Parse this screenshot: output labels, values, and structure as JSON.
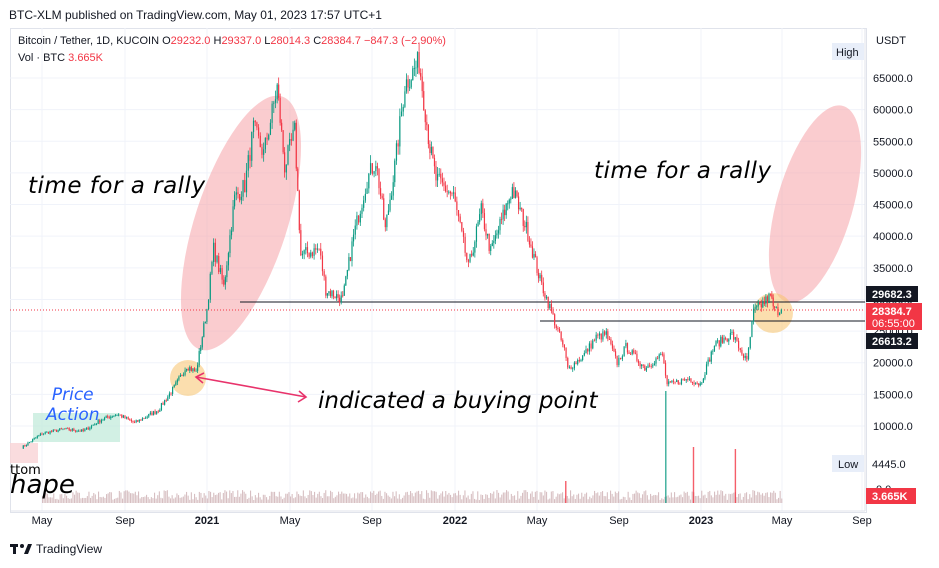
{
  "header": {
    "publisher_line": "BTC-XLM published on TradingView.com, May 01, 2023 17:57 UTC+1"
  },
  "legend": {
    "symbol": "Bitcoin / Tether, 1D, KUCOIN",
    "o_label": "O",
    "o_value": "29232.0",
    "h_label": "H",
    "h_value": "29337.0",
    "l_label": "L",
    "l_value": "28014.3",
    "c_label": "C",
    "c_value": "28384.7",
    "change": "−847.3 (−2.90%)",
    "vol_label": "Vol · BTC",
    "vol_value": "3.665K"
  },
  "annotations": {
    "rally_left": "time for a rally",
    "rally_right": "time for a rally",
    "buying_point": "indicated a buying point",
    "price_action": "Price\nAction",
    "bottom_word": "ttom",
    "shape_word": "hape"
  },
  "price_axis": {
    "unit": "USDT",
    "high_label": "High",
    "low_label": "Low",
    "low_value": "4445.0",
    "zero_label": "0.0",
    "tag_upper": "29682.3",
    "tag_current": "28384.7",
    "tag_timer": "06:55:00",
    "tag_lower": "26613.2",
    "tag_volume": "3.665K"
  },
  "footer": {
    "brand": "TradingView"
  },
  "colors": {
    "up": "#089981",
    "down": "#f23645",
    "volume": "#c9a9ad",
    "rally_ellipse": "#f5a3a8",
    "highlight_circle": "#f7c26b",
    "price_action_box": "#bfe9d9",
    "arrow": "#e8336b",
    "price_action_text": "#2962ff"
  },
  "chart_data": {
    "type": "candlestick",
    "title": "Bitcoin / Tether, 1D, KUCOIN",
    "x_ticks": [
      "May",
      "Sep",
      "2021",
      "May",
      "Sep",
      "2022",
      "May",
      "Sep",
      "2023",
      "May",
      "Sep"
    ],
    "y_ticks": [
      10000,
      15000,
      20000,
      25000,
      30000,
      35000,
      40000,
      45000,
      50000,
      55000,
      60000,
      65000
    ],
    "ylim": [
      1500,
      69500
    ],
    "price_path": [
      {
        "x": "2020-04-01",
        "y": 6600
      },
      {
        "x": "2020-05-01",
        "y": 8800
      },
      {
        "x": "2020-06-01",
        "y": 9500
      },
      {
        "x": "2020-07-01",
        "y": 9200
      },
      {
        "x": "2020-07-28",
        "y": 11000
      },
      {
        "x": "2020-08-20",
        "y": 11900
      },
      {
        "x": "2020-09-15",
        "y": 10500
      },
      {
        "x": "2020-10-20",
        "y": 12500
      },
      {
        "x": "2020-11-15",
        "y": 16500
      },
      {
        "x": "2020-12-01",
        "y": 19500
      },
      {
        "x": "2020-12-15",
        "y": 18500
      },
      {
        "x": "2020-12-31",
        "y": 28500
      },
      {
        "x": "2021-01-10",
        "y": 38000
      },
      {
        "x": "2021-01-25",
        "y": 32000
      },
      {
        "x": "2021-02-10",
        "y": 46000
      },
      {
        "x": "2021-02-25",
        "y": 48000
      },
      {
        "x": "2021-03-10",
        "y": 57000
      },
      {
        "x": "2021-03-25",
        "y": 53000
      },
      {
        "x": "2021-04-14",
        "y": 63500
      },
      {
        "x": "2021-04-25",
        "y": 51000
      },
      {
        "x": "2021-05-10",
        "y": 56500
      },
      {
        "x": "2021-05-19",
        "y": 37000
      },
      {
        "x": "2021-06-15",
        "y": 38000
      },
      {
        "x": "2021-06-25",
        "y": 31500
      },
      {
        "x": "2021-07-20",
        "y": 30000
      },
      {
        "x": "2021-08-05",
        "y": 40000
      },
      {
        "x": "2021-08-25",
        "y": 49000
      },
      {
        "x": "2021-09-07",
        "y": 52000
      },
      {
        "x": "2021-09-21",
        "y": 41000
      },
      {
        "x": "2021-10-05",
        "y": 51000
      },
      {
        "x": "2021-10-20",
        "y": 64000
      },
      {
        "x": "2021-11-10",
        "y": 67500
      },
      {
        "x": "2021-11-26",
        "y": 54000
      },
      {
        "x": "2021-12-05",
        "y": 49000
      },
      {
        "x": "2021-12-31",
        "y": 46300
      },
      {
        "x": "2022-01-22",
        "y": 35000
      },
      {
        "x": "2022-02-10",
        "y": 44000
      },
      {
        "x": "2022-02-24",
        "y": 37500
      },
      {
        "x": "2022-03-28",
        "y": 47500
      },
      {
        "x": "2022-04-20",
        "y": 40500
      },
      {
        "x": "2022-05-08",
        "y": 33000
      },
      {
        "x": "2022-05-20",
        "y": 29500
      },
      {
        "x": "2022-06-13",
        "y": 22000
      },
      {
        "x": "2022-06-18",
        "y": 19000
      },
      {
        "x": "2022-07-10",
        "y": 21000
      },
      {
        "x": "2022-07-30",
        "y": 24000
      },
      {
        "x": "2022-08-14",
        "y": 24500
      },
      {
        "x": "2022-08-30",
        "y": 20000
      },
      {
        "x": "2022-09-12",
        "y": 22500
      },
      {
        "x": "2022-10-10",
        "y": 19200
      },
      {
        "x": "2022-11-05",
        "y": 21300
      },
      {
        "x": "2022-11-12",
        "y": 16500
      },
      {
        "x": "2022-12-15",
        "y": 17500
      },
      {
        "x": "2022-12-31",
        "y": 16600
      },
      {
        "x": "2023-01-21",
        "y": 22800
      },
      {
        "x": "2023-02-16",
        "y": 24500
      },
      {
        "x": "2023-03-10",
        "y": 20100
      },
      {
        "x": "2023-03-20",
        "y": 28000
      },
      {
        "x": "2023-04-14",
        "y": 30500
      },
      {
        "x": "2023-04-20",
        "y": 28200
      },
      {
        "x": "2023-04-30",
        "y": 28384.7
      }
    ],
    "horizontal_levels": [
      29682.3,
      26613.2
    ],
    "current_price": 28384.7
  }
}
